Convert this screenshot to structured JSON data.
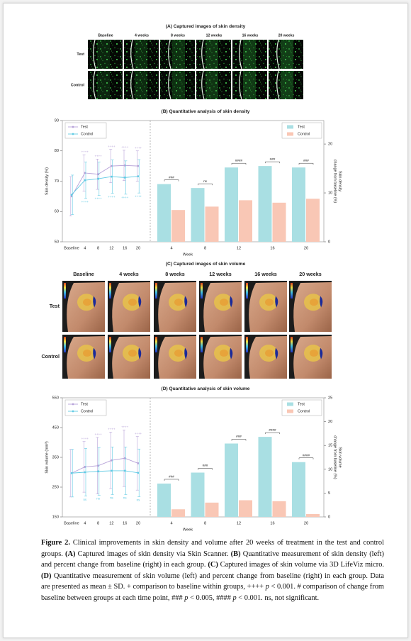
{
  "panel_a": {
    "title": "(A) Captured images of skin density",
    "columns": [
      "Baseline",
      "4 weeks",
      "8 weeks",
      "12 weeks",
      "16 weeks",
      "20 weeks"
    ],
    "rows": [
      "Test",
      "Control"
    ]
  },
  "panel_c": {
    "title": "(C) Captured images of skin volume",
    "columns": [
      "Baseline",
      "4 weeks",
      "8 weeks",
      "12 weeks",
      "16 weeks",
      "20 weeks"
    ],
    "rows": [
      "Test",
      "Control"
    ]
  },
  "chart_data": [
    {
      "type": "line",
      "title": "(B) Quantitative analysis of skin density",
      "y_label": "Skin density (%)",
      "categories": [
        "Baseline",
        "4",
        "8",
        "12",
        "16",
        "20"
      ],
      "ylim": [
        50,
        90
      ],
      "yticks": [
        50,
        60,
        70,
        80,
        90
      ],
      "legend": "top-left",
      "series": [
        {
          "name": "Test",
          "color": "#b7a2d8",
          "values": [
            65,
            72.7,
            72.3,
            75,
            75.2,
            75
          ],
          "errors": [
            6.5,
            6,
            5,
            5.5,
            5,
            5
          ],
          "sig_labels": [
            null,
            "++++",
            "++++",
            "++++",
            "++++",
            "++++"
          ],
          "sig_position": "above"
        },
        {
          "name": "Control",
          "color": "#62cbe4",
          "values": [
            65.5,
            70.3,
            70.8,
            71.5,
            71.2,
            71.6
          ],
          "errors": [
            6.5,
            6,
            5.5,
            5.5,
            5.5,
            5.5
          ],
          "sig_labels": [
            null,
            "++++",
            "++++",
            "++++",
            "++++",
            "++++"
          ],
          "sig_position": "below"
        }
      ]
    },
    {
      "type": "bar",
      "x_label": "Week",
      "y_label": [
        "Skin density",
        "change from baseline (%)"
      ],
      "categories": [
        "4",
        "8",
        "12",
        "16",
        "20"
      ],
      "y_axis_side": "right",
      "ylim": [
        0,
        24.8
      ],
      "yticks": [
        0,
        10,
        20
      ],
      "legend": "top-right",
      "series": [
        {
          "name": "Test",
          "color": "#a9dfe3",
          "values": [
            11.8,
            11,
            15.2,
            15.5,
            15.2
          ]
        },
        {
          "name": "Control",
          "color": "#f9c7b5",
          "values": [
            6.5,
            7.2,
            8.5,
            8,
            8.8
          ]
        }
      ],
      "sig_labels": [
        "###",
        "ns",
        "####",
        "###",
        "###"
      ]
    },
    {
      "type": "line",
      "title": "(D) Quantitative analysis of skin volume",
      "y_label": "Skin volume (mm³)",
      "categories": [
        "Baseline",
        "4",
        "8",
        "12",
        "16",
        "20"
      ],
      "ylim": [
        150,
        550
      ],
      "yticks": [
        150,
        250,
        350,
        450,
        550
      ],
      "legend": "top-left",
      "series": [
        {
          "name": "Test",
          "color": "#b7a2d8",
          "values": [
            297,
            318,
            322,
            340,
            347,
            330
          ],
          "errors": [
            80,
            85,
            95,
            95,
            95,
            90
          ],
          "sig_labels": [
            null,
            "++++",
            "++++",
            "++++",
            "++++",
            "++++"
          ],
          "sig_position": "above"
        },
        {
          "name": "Control",
          "color": "#62cbe4",
          "values": [
            297,
            300,
            303,
            305,
            305,
            298
          ],
          "errors": [
            80,
            80,
            80,
            80,
            80,
            80
          ],
          "sig_labels": [
            null,
            "ns",
            "ns",
            "ns",
            "ns",
            "ns"
          ],
          "sig_position": "below"
        }
      ]
    },
    {
      "type": "bar",
      "x_label": "Week",
      "y_label": [
        "Skin volume",
        "change from baseline (%)"
      ],
      "categories": [
        "4",
        "8",
        "12",
        "16",
        "20"
      ],
      "y_axis_side": "right",
      "ylim": [
        0,
        25
      ],
      "yticks": [
        0,
        5,
        10,
        15,
        20,
        25
      ],
      "legend": "top-right",
      "series": [
        {
          "name": "Test",
          "color": "#a9dfe3",
          "values": [
            7,
            9.3,
            15.4,
            16.8,
            11.5
          ]
        },
        {
          "name": "Control",
          "color": "#f9c7b5",
          "values": [
            1.6,
            3,
            3.5,
            3.3,
            0.6
          ]
        }
      ],
      "sig_labels": [
        "###",
        "###",
        "###",
        "####",
        "####"
      ]
    }
  ],
  "caption": {
    "runs": [
      {
        "text": "Figure 2.",
        "bold": true
      },
      {
        "text": " Clinical improvements in skin density and volume after 20 weeks of treatment in the test and control groups. "
      },
      {
        "text": "(A)",
        "bold": true
      },
      {
        "text": " Captured images of skin density via Skin Scanner. "
      },
      {
        "text": "(B)",
        "bold": true
      },
      {
        "text": " Quantitative measurement of skin density (left) and percent change from baseline (right) in each group. "
      },
      {
        "text": "(C)",
        "bold": true
      },
      {
        "text": " Captured images of skin volume via 3D LifeViz micro. "
      },
      {
        "text": "(D)",
        "bold": true
      },
      {
        "text": " Quantitative measurement of skin volume (left) and percent change from baseline (right) in each group.  Data are presented as mean ± SD. + comparison to baseline within groups, ++++ "
      },
      {
        "text": "p",
        "italic": true
      },
      {
        "text": " < 0.001. # comparison of change from baseline between groups at each time point, ### "
      },
      {
        "text": "p",
        "italic": true
      },
      {
        "text": " < 0.005, #### "
      },
      {
        "text": "p",
        "italic": true
      },
      {
        "text": " < 0.001. ns, not significant."
      }
    ]
  }
}
